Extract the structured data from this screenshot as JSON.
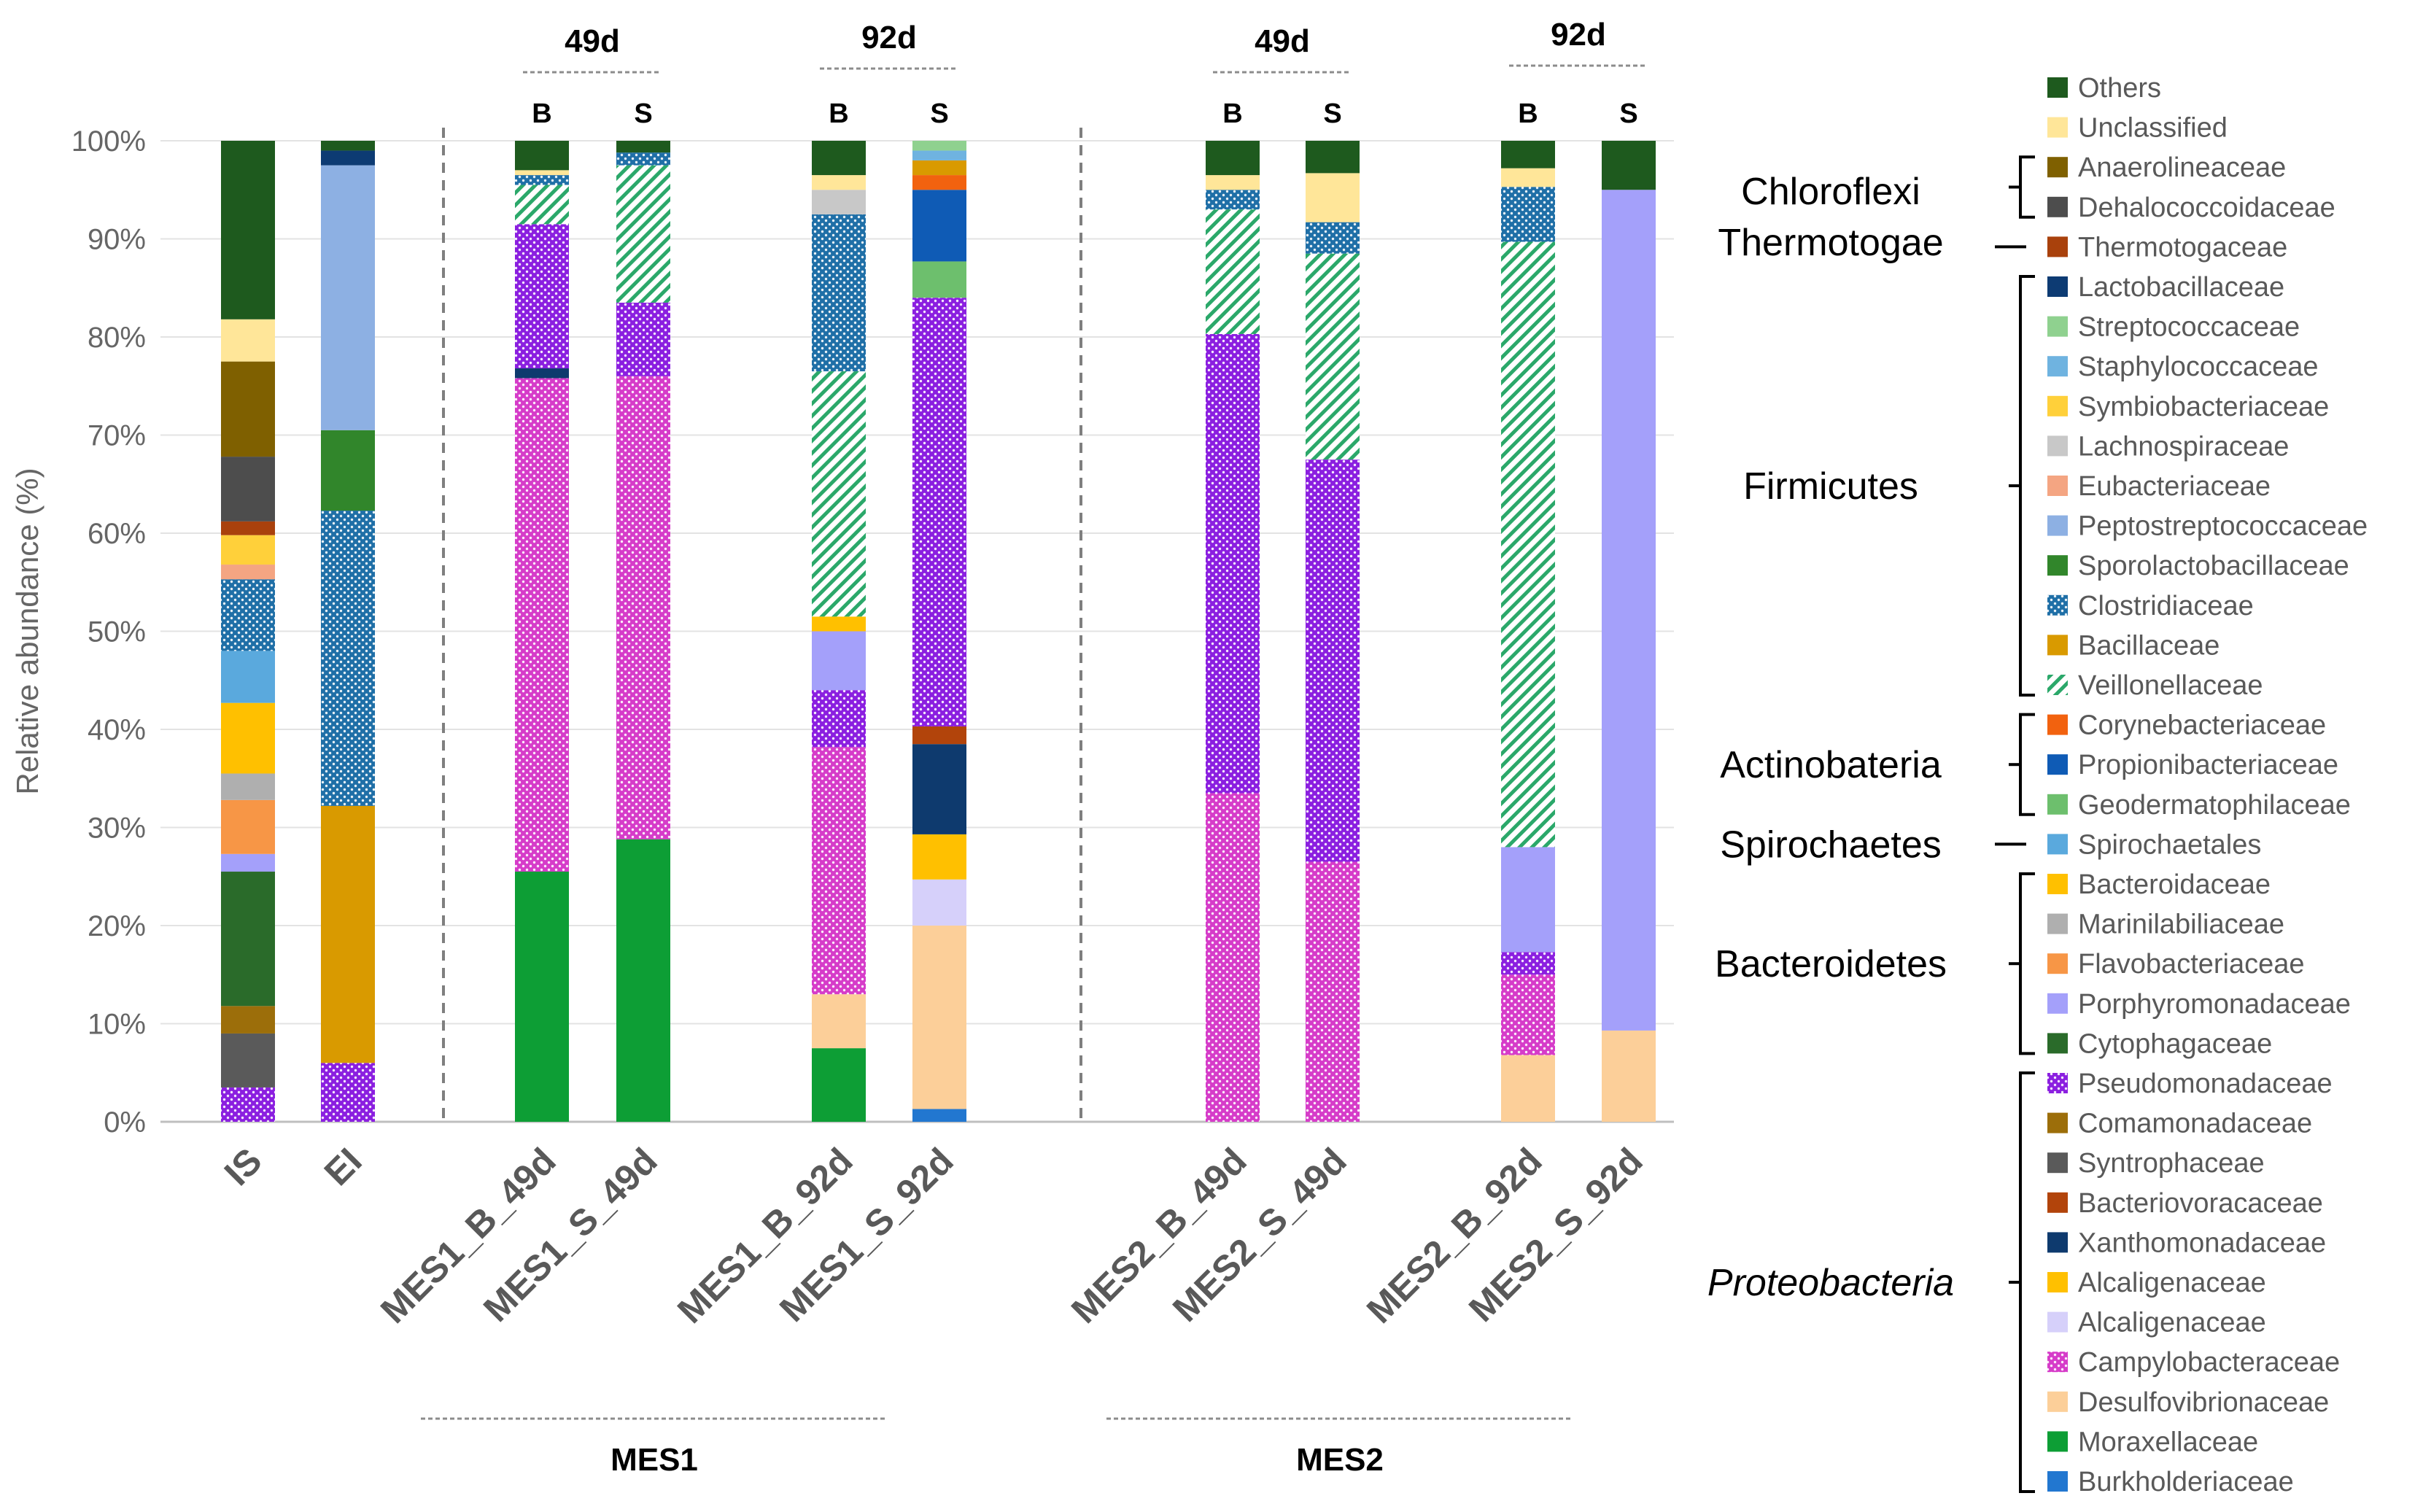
{
  "chart_data": {
    "type": "bar",
    "stacked": true,
    "ylabel": "Relative abundance (%)",
    "ylim": [
      0,
      100
    ],
    "yticks": [
      "0%",
      "10%",
      "20%",
      "30%",
      "40%",
      "50%",
      "60%",
      "70%",
      "80%",
      "90%",
      "100%"
    ],
    "categories": [
      "IS",
      "EI",
      "MES1_B_49d",
      "MES1_S_49d",
      "MES1_B_92d",
      "MES1_S_92d",
      "MES2_B_49d",
      "MES2_S_49d",
      "MES2_B_92d",
      "MES2_S_92d"
    ],
    "groups": [
      {
        "name": "MES1",
        "timepoints": [
          "49d",
          "92d"
        ],
        "sublabels": [
          "B",
          "S",
          "B",
          "S"
        ]
      },
      {
        "name": "MES2",
        "timepoints": [
          "49d",
          "92d"
        ],
        "sublabels": [
          "B",
          "S",
          "B",
          "S"
        ]
      }
    ],
    "taxa": [
      {
        "name": "Others",
        "color": "#1E5A1E",
        "pattern": "solid"
      },
      {
        "name": "Unclassified",
        "color": "#FFE699",
        "pattern": "solid"
      },
      {
        "name": "Anaerolineaceae",
        "color": "#7F6000",
        "pattern": "solid"
      },
      {
        "name": "Dehalococcoidaceae",
        "color": "#4D4D4D",
        "pattern": "solid"
      },
      {
        "name": "Thermotogaceae",
        "color": "#A9410C",
        "pattern": "solid"
      },
      {
        "name": "Lactobacillaceae",
        "color": "#0D3B73",
        "pattern": "solid"
      },
      {
        "name": "Streptococcaceae",
        "color": "#8FD18F",
        "pattern": "solid"
      },
      {
        "name": "Staphylococcaceae",
        "color": "#6FB3E0",
        "pattern": "solid"
      },
      {
        "name": "Symbiobacteriaceae",
        "color": "#FFD03A",
        "pattern": "solid"
      },
      {
        "name": "Lachnospiraceae",
        "color": "#C8C8C8",
        "pattern": "solid"
      },
      {
        "name": "Eubacteriaceae",
        "color": "#F4A582",
        "pattern": "solid"
      },
      {
        "name": "Peptostreptococcaceae",
        "color": "#8DB0E3",
        "pattern": "solid"
      },
      {
        "name": "Sporolactobacillaceae",
        "color": "#31862B",
        "pattern": "solid"
      },
      {
        "name": "Clostridiaceae",
        "color": "#1F6FA7",
        "pattern": "dots"
      },
      {
        "name": "Bacillaceae",
        "color": "#D99A00",
        "pattern": "solid"
      },
      {
        "name": "Veillonellaceae",
        "color": "#2BA86A",
        "pattern": "stripes"
      },
      {
        "name": "Corynebacteriaceae",
        "color": "#F2620F",
        "pattern": "solid"
      },
      {
        "name": "Propionibacteriaceae",
        "color": "#0F5BB5",
        "pattern": "solid"
      },
      {
        "name": "Geodermatophilaceae",
        "color": "#6DBF6D",
        "pattern": "solid"
      },
      {
        "name": "Spirochaetales",
        "color": "#5AA9DD",
        "pattern": "solid"
      },
      {
        "name": "Bacteroidaceae",
        "color": "#FFC000",
        "pattern": "solid"
      },
      {
        "name": "Marinilabiliaceae",
        "color": "#AFAFAF",
        "pattern": "solid"
      },
      {
        "name": "Flavobacteriaceae",
        "color": "#F79646",
        "pattern": "solid"
      },
      {
        "name": "Porphyromonadaceae",
        "color": "#A4A0FA",
        "pattern": "solid"
      },
      {
        "name": "Cytophagaceae",
        "color": "#2A6B2A",
        "pattern": "solid"
      },
      {
        "name": "Pseudomonadaceae",
        "color": "#8B1FE0",
        "pattern": "dots"
      },
      {
        "name": "Comamonadaceae",
        "color": "#9C6E0A",
        "pattern": "solid"
      },
      {
        "name": "Syntrophaceae",
        "color": "#5A5A5A",
        "pattern": "solid"
      },
      {
        "name": "Bacteriovoracaceae",
        "color": "#B2440B",
        "pattern": "solid"
      },
      {
        "name": "Xanthomonadaceae",
        "color": "#0E3A6E",
        "pattern": "solid"
      },
      {
        "name": "Alcaligenaceae",
        "color": "#FFC000",
        "pattern": "solid"
      },
      {
        "name": "Alcaligenaceae",
        "color": "#D6D0FA",
        "pattern": "solid"
      },
      {
        "name": "Campylobacteraceae",
        "color": "#D63CC9",
        "pattern": "dots"
      },
      {
        "name": "Desulfovibrionaceae",
        "color": "#FCCF99",
        "pattern": "solid"
      },
      {
        "name": "Moraxellaceae",
        "color": "#0D9E35",
        "pattern": "solid"
      },
      {
        "name": "Burkholderiaceae",
        "color": "#2277D0",
        "pattern": "solid"
      }
    ],
    "phyla": [
      {
        "name": "Chloroflexi",
        "italic": false,
        "from": 2,
        "to": 3
      },
      {
        "name": "Thermotogae",
        "italic": false,
        "from": 4,
        "to": 4
      },
      {
        "name": "Firmicutes",
        "italic": false,
        "from": 5,
        "to": 15
      },
      {
        "name": "Actinobateria",
        "italic": false,
        "from": 16,
        "to": 18
      },
      {
        "name": "Spirochaetes",
        "italic": false,
        "from": 19,
        "to": 19
      },
      {
        "name": "Bacteroidetes",
        "italic": false,
        "from": 20,
        "to": 24
      },
      {
        "name": "Proteobacteria",
        "italic": true,
        "from": 25,
        "to": 35
      }
    ],
    "bars": [
      {
        "label": "IS",
        "segments": [
          [
            "Pseudomonadaceae",
            0,
            3.5
          ],
          [
            "Syntrophaceae",
            3.5,
            9
          ],
          [
            "Comamonadaceae",
            9,
            11.8
          ],
          [
            "Cytophagaceae",
            11.8,
            25.5
          ],
          [
            "Porphyromonadaceae",
            25.5,
            27.3
          ],
          [
            "Flavobacteriaceae",
            27.3,
            32.8
          ],
          [
            "Marinilabiliaceae",
            32.8,
            35.5
          ],
          [
            "Bacteroidaceae",
            35.5,
            42.7
          ],
          [
            "Spirochaetales",
            42.7,
            48
          ],
          [
            "Clostridiaceae",
            48,
            55.3
          ],
          [
            "Eubacteriaceae",
            55.3,
            56.8
          ],
          [
            "Symbiobacteriaceae",
            56.8,
            59.8
          ],
          [
            "Thermotogaceae",
            59.8,
            61.2
          ],
          [
            "Dehalococcoidaceae",
            61.2,
            67.8
          ],
          [
            "Anaerolineaceae",
            67.8,
            77.5
          ],
          [
            "Unclassified",
            77.5,
            81.8
          ],
          [
            "Others",
            81.8,
            100
          ]
        ]
      },
      {
        "label": "EI",
        "segments": [
          [
            "Pseudomonadaceae",
            0,
            6
          ],
          [
            "Bacillaceae",
            6,
            32.2
          ],
          [
            "Clostridiaceae",
            32.2,
            62.3
          ],
          [
            "Sporolactobacillaceae",
            62.3,
            70.5
          ],
          [
            "Peptostreptococcaceae",
            70.5,
            97.5
          ],
          [
            "Lactobacillaceae",
            97.5,
            99
          ],
          [
            "Others",
            99,
            100
          ]
        ]
      },
      {
        "label": "MES1_B_49d",
        "segments": [
          [
            "Moraxellaceae",
            0,
            25.5
          ],
          [
            "Campylobacteraceae",
            25.5,
            75.8
          ],
          [
            "Xanthomonadaceae",
            75.8,
            76.8
          ],
          [
            "Pseudomonadaceae",
            76.8,
            91.5
          ],
          [
            "Veillonellaceae",
            91.5,
            95.5
          ],
          [
            "Clostridiaceae",
            95.5,
            96.5
          ],
          [
            "Unclassified",
            96.5,
            97
          ],
          [
            "Others",
            97,
            100
          ]
        ]
      },
      {
        "label": "MES1_S_49d",
        "segments": [
          [
            "Moraxellaceae",
            0,
            28.8
          ],
          [
            "Campylobacteraceae",
            28.8,
            76
          ],
          [
            "Pseudomonadaceae",
            76,
            83.5
          ],
          [
            "Veillonellaceae",
            83.5,
            97.5
          ],
          [
            "Clostridiaceae",
            97.5,
            98.8
          ],
          [
            "Others",
            98.8,
            100
          ]
        ]
      },
      {
        "label": "MES1_B_92d",
        "segments": [
          [
            "Moraxellaceae",
            0,
            7.5
          ],
          [
            "Desulfovibrionaceae",
            7.5,
            13
          ],
          [
            "Campylobacteraceae",
            13,
            38.2
          ],
          [
            "Pseudomonadaceae",
            38.2,
            44
          ],
          [
            "Porphyromonadaceae",
            44,
            50
          ],
          [
            "Bacteroidaceae",
            50,
            51.5
          ],
          [
            "Veillonellaceae",
            51.5,
            76.5
          ],
          [
            "Clostridiaceae",
            76.5,
            92.5
          ],
          [
            "Lachnospiraceae",
            92.5,
            95
          ],
          [
            "Unclassified",
            95,
            96.5
          ],
          [
            "Others",
            96.5,
            100
          ]
        ]
      },
      {
        "label": "MES1_S_92d",
        "segments": [
          [
            "Burkholderiaceae",
            0,
            1.3
          ],
          [
            "Desulfovibrionaceae",
            1.3,
            20
          ],
          [
            "Alcaligenaceae",
            20,
            24.7
          ],
          [
            "Bacteroidaceae",
            24.7,
            29.3
          ],
          [
            "Xanthomonadaceae",
            29.3,
            38.5
          ],
          [
            "Bacteriovoracaceae",
            38.5,
            40.3
          ],
          [
            "Pseudomonadaceae",
            40.3,
            84
          ],
          [
            "Geodermatophilaceae",
            84,
            87.7
          ],
          [
            "Propionibacteriaceae",
            87.7,
            95
          ],
          [
            "Corynebacteriaceae",
            95,
            96.5
          ],
          [
            "Bacillaceae",
            96.5,
            98
          ],
          [
            "Staphylococcaceae",
            98,
            99
          ],
          [
            "Streptococcaceae",
            99,
            100
          ]
        ]
      },
      {
        "label": "MES2_B_49d",
        "segments": [
          [
            "Campylobacteraceae",
            0,
            33.5
          ],
          [
            "Pseudomonadaceae",
            33.5,
            80.3
          ],
          [
            "Veillonellaceae",
            80.3,
            93
          ],
          [
            "Clostridiaceae",
            93,
            95
          ],
          [
            "Unclassified",
            95,
            96.5
          ],
          [
            "Others",
            96.5,
            100
          ]
        ]
      },
      {
        "label": "MES2_S_49d",
        "segments": [
          [
            "Campylobacteraceae",
            0,
            26.5
          ],
          [
            "Pseudomonadaceae",
            26.5,
            67.5
          ],
          [
            "Veillonellaceae",
            67.5,
            88.5
          ],
          [
            "Clostridiaceae",
            88.5,
            91.7
          ],
          [
            "Unclassified",
            91.7,
            96.7
          ],
          [
            "Others",
            96.7,
            100
          ]
        ]
      },
      {
        "label": "MES2_B_92d",
        "segments": [
          [
            "Desulfovibrionaceae",
            0,
            6.8
          ],
          [
            "Campylobacteraceae",
            6.8,
            15
          ],
          [
            "Pseudomonadaceae",
            15,
            17.3
          ],
          [
            "Porphyromonadaceae",
            17.3,
            28
          ],
          [
            "Veillonellaceae",
            28,
            89.7
          ],
          [
            "Clostridiaceae",
            89.7,
            95.3
          ],
          [
            "Unclassified",
            95.3,
            97.2
          ],
          [
            "Others",
            97.2,
            100
          ]
        ]
      },
      {
        "label": "MES2_S_92d",
        "segments": [
          [
            "Desulfovibrionaceae",
            0,
            9.3
          ],
          [
            "Porphyromonadaceae",
            9.3,
            95
          ],
          [
            "Others",
            95,
            100
          ]
        ]
      }
    ]
  }
}
